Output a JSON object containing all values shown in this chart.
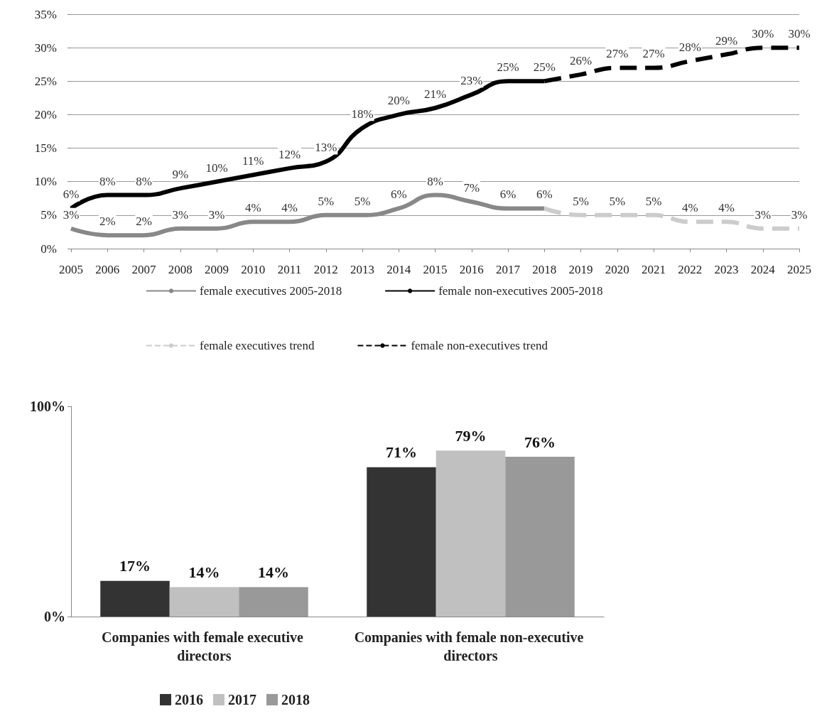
{
  "chart_data": [
    {
      "type": "line",
      "categories": [
        "2005",
        "2006",
        "2007",
        "2008",
        "2009",
        "2010",
        "2011",
        "2012",
        "2013",
        "2014",
        "2015",
        "2016",
        "2017",
        "2018",
        "2019",
        "2020",
        "2021",
        "2022",
        "2023",
        "2024",
        "2025"
      ],
      "ylim": [
        0,
        35
      ],
      "yticks": [
        {
          "value": 0,
          "label": "0%"
        },
        {
          "value": 5,
          "label": "5%"
        },
        {
          "value": 10,
          "label": "10%"
        },
        {
          "value": 15,
          "label": "15%"
        },
        {
          "value": 20,
          "label": "20%"
        },
        {
          "value": 25,
          "label": "25%"
        },
        {
          "value": 30,
          "label": "30%"
        },
        {
          "value": 35,
          "label": "35%"
        }
      ],
      "grid": "y",
      "legend": "bottom",
      "marker": "none",
      "series": [
        {
          "name": "female executives 2005-2018",
          "color": "#888888",
          "line_style": "solid",
          "values": [
            3,
            2,
            2,
            3,
            3,
            4,
            4,
            5,
            5,
            6,
            8,
            7,
            6,
            6,
            null,
            null,
            null,
            null,
            null,
            null,
            null
          ],
          "value_labels": [
            "3%",
            "2%",
            "2%",
            "3%",
            "3%",
            "4%",
            "4%",
            "5%",
            "5%",
            "6%",
            "8%",
            "7%",
            "6%",
            "6%",
            null,
            null,
            null,
            null,
            null,
            null,
            null
          ]
        },
        {
          "name": "female non-executives 2005-2018",
          "color": "#000000",
          "line_style": "solid",
          "values": [
            6,
            8,
            8,
            9,
            10,
            11,
            12,
            13,
            18,
            20,
            21,
            23,
            25,
            25,
            null,
            null,
            null,
            null,
            null,
            null,
            null
          ],
          "value_labels": [
            "6%",
            "8%",
            "8%",
            "9%",
            "10%",
            "11%",
            "12%",
            "13%",
            "18%",
            "20%",
            "21%",
            "23%",
            "25%",
            "25%",
            null,
            null,
            null,
            null,
            null,
            null,
            null
          ]
        },
        {
          "name": "female executives trend",
          "color": "#cccccc",
          "line_style": "dashed",
          "values": [
            null,
            null,
            null,
            null,
            null,
            null,
            null,
            null,
            null,
            null,
            null,
            null,
            null,
            6,
            5,
            5,
            5,
            4,
            4,
            3,
            3
          ],
          "value_labels": [
            null,
            null,
            null,
            null,
            null,
            null,
            null,
            null,
            null,
            null,
            null,
            null,
            null,
            null,
            "5%",
            "5%",
            "5%",
            "4%",
            "4%",
            "3%",
            "3%"
          ]
        },
        {
          "name": "female non-executives trend",
          "color": "#000000",
          "line_style": "dashed",
          "values": [
            null,
            null,
            null,
            null,
            null,
            null,
            null,
            null,
            null,
            null,
            null,
            null,
            null,
            25,
            26,
            27,
            27,
            28,
            29,
            30,
            30
          ],
          "value_labels": [
            null,
            null,
            null,
            null,
            null,
            null,
            null,
            null,
            null,
            null,
            null,
            null,
            null,
            null,
            "26%",
            "27%",
            "27%",
            "28%",
            "29%",
            "30%",
            "30%"
          ]
        }
      ]
    },
    {
      "type": "bar",
      "categories": [
        "Companies with female executive directors",
        "Companies with female non-executive directors"
      ],
      "ylim": [
        0,
        100
      ],
      "yticks": [
        {
          "value": 0,
          "label": "0%"
        },
        {
          "value": 100,
          "label": "100%"
        }
      ],
      "grid": false,
      "legend": "bottom",
      "series": [
        {
          "name": "2016",
          "color": "#333333",
          "values": [
            17,
            71
          ],
          "value_labels": [
            "17%",
            "71%"
          ]
        },
        {
          "name": "2017",
          "color": "#c0c0c0",
          "values": [
            14,
            79
          ],
          "value_labels": [
            "14%",
            "79%"
          ]
        },
        {
          "name": "2018",
          "color": "#999999",
          "values": [
            14,
            76
          ],
          "value_labels": [
            "14%",
            "76%"
          ]
        }
      ]
    }
  ]
}
